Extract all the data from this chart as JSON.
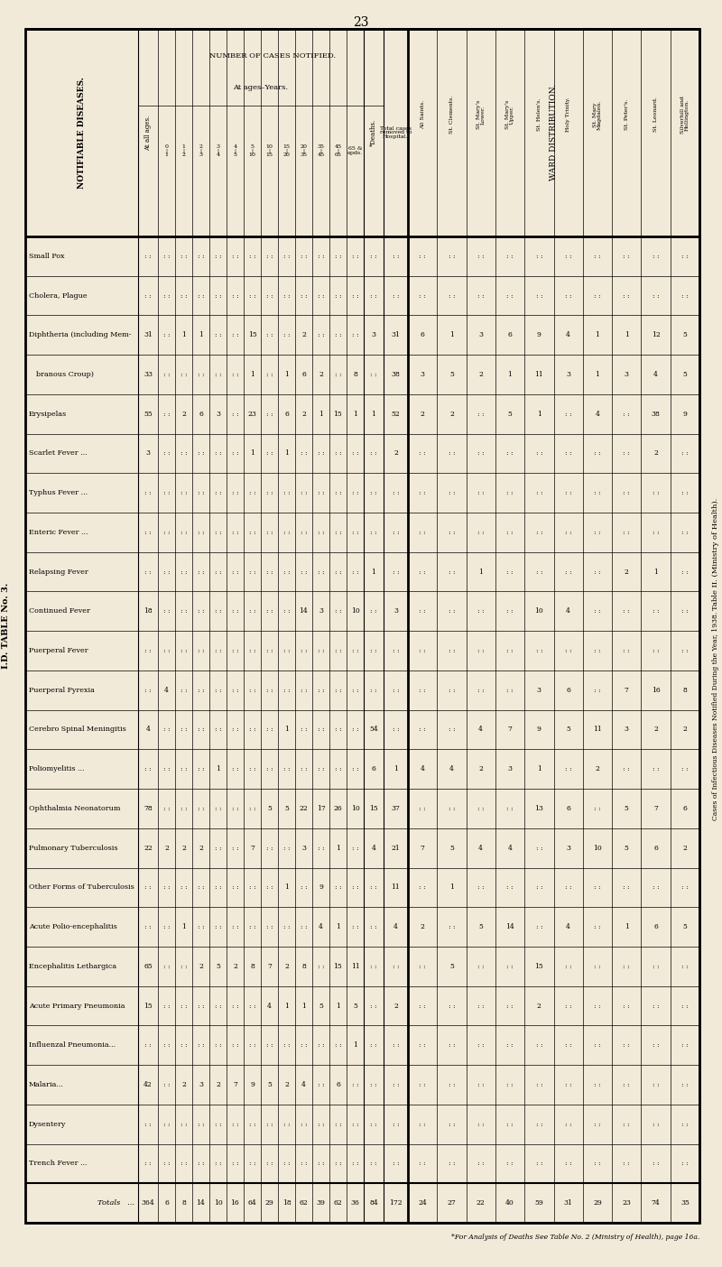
{
  "page_number": "23",
  "title_left": "I.D. TABLE No. 3.",
  "title_right_1": "Table II. (Ministry of Health).",
  "title_right_2": "Cases of Infectious Diseases Notified During the Year, 1938.",
  "footnote": "*For Analysis of Deaths See Table No. 2 (Ministry of Health), page 16a.",
  "bg_color": "#f2ead8",
  "ward_label": "WARD DISTRIBUTION.",
  "num_cases_label": "NUMBER OF CASES NOTIFIED.",
  "at_ages_label": "At ages–Years.",
  "diseases": [
    "Small Pox",
    "Cholera, Plague",
    "Diphtheria (including Mem-",
    "   branous Croup)",
    "Erysipelas",
    "Scarlet Fever ...",
    "Typhus Fever ...",
    "Enteric Fever ...",
    "Relapsing Fever",
    "Continued Fever",
    "Puerperal Fever",
    "Puerperal Pyrexia",
    "Cerebro Spinal Meningitis",
    "Poliomyelitis ...",
    "Ophthalmia Neonatorum",
    "Pulmonary Tuberculosis",
    "Other Forms of Tuberculosis",
    "Acute Polio-encephalitis",
    "Encephalitis Lethargica",
    "Acute Primary Pneumonia",
    "Influenzal Pneumonia...",
    "Malaria...",
    "Dysentery",
    "Trench Fever ...",
    "Totals"
  ],
  "col_all_ages": [
    ": :",
    ": :",
    "31",
    "33",
    "55",
    "3",
    ": :",
    ": :",
    ": :",
    "18",
    ": :",
    ": :",
    "4",
    ": :",
    "78",
    "22",
    ": :",
    ": :",
    "65",
    "15",
    ": :",
    "42",
    ": :",
    ": :",
    "364"
  ],
  "col_0_1": [
    ": :",
    ": :",
    ": :",
    ": :",
    ": :",
    ": :",
    ": :",
    ": :",
    ": :",
    ": :",
    ": :",
    "4",
    ": :",
    ": :",
    ": :",
    "2",
    ": :",
    ": :",
    ": :",
    ": :",
    ": :",
    ": :",
    ": :",
    ": :",
    "6"
  ],
  "col_1_2": [
    ": :",
    ": :",
    "1",
    ": :",
    "2",
    ": :",
    ": :",
    ": :",
    ": :",
    ": :",
    ": :",
    ": :",
    ": :",
    ": :",
    ": :",
    "2",
    ": :",
    "1",
    ": :",
    ": :",
    ": :",
    "2",
    ": :",
    ": :",
    "8"
  ],
  "col_2_3": [
    ": :",
    ": :",
    "1",
    ": :",
    "6",
    ": :",
    ": :",
    ": :",
    ": :",
    ": :",
    ": :",
    ": :",
    ": :",
    ": :",
    ": :",
    "2",
    ": :",
    ": :",
    "2",
    ": :",
    ": :",
    "3",
    ": :",
    ": :",
    "14"
  ],
  "col_3_4": [
    ": :",
    ": :",
    ": :",
    ": :",
    "3",
    ": :",
    ": :",
    ": :",
    ": :",
    ": :",
    ": :",
    ": :",
    ": :",
    "1",
    ": :",
    ": :",
    ": :",
    ": :",
    "5",
    ": :",
    ": :",
    "2",
    ": :",
    ": :",
    "10"
  ],
  "col_4_5": [
    ": :",
    ": :",
    ": :",
    ": :",
    ": :",
    ": :",
    ": :",
    ": :",
    ": :",
    ": :",
    ": :",
    ": :",
    ": :",
    ": :",
    ": :",
    ": :",
    ": :",
    ": :",
    "2",
    ": :",
    ": :",
    "7",
    ": :",
    ": :",
    "16"
  ],
  "col_5_10": [
    ": :",
    ": :",
    "15",
    "1",
    "23",
    "1",
    ": :",
    ": :",
    ": :",
    ": :",
    ": :",
    ": :",
    ": :",
    ": :",
    ": :",
    "7",
    ": :",
    ": :",
    "8",
    ": :",
    ": :",
    "9",
    ": :",
    ": :",
    "64"
  ],
  "col_10_15": [
    ": :",
    ": :",
    ": :",
    ": :",
    ": :",
    ": :",
    ": :",
    ": :",
    ": :",
    ": :",
    ": :",
    ": :",
    ": :",
    ": :",
    "5",
    ": :",
    ": :",
    ": :",
    "7",
    "4",
    ": :",
    "5",
    ": :",
    ": :",
    "29"
  ],
  "col_15_20": [
    ": :",
    ": :",
    ": :",
    "1",
    "6",
    "1",
    ": :",
    ": :",
    ": :",
    ": :",
    ": :",
    ": :",
    "1",
    ": :",
    "5",
    ": :",
    "1",
    ": :",
    "2",
    "1",
    ": :",
    "2",
    ": :",
    ": :",
    "18"
  ],
  "col_20_35": [
    ": :",
    ": :",
    "2",
    "6",
    "2",
    ": :",
    ": :",
    ": :",
    ": :",
    "14",
    ": :",
    ": :",
    ": :",
    ": :",
    "22",
    "3",
    ": :",
    ": :",
    "8",
    "1",
    ": :",
    "4",
    ": :",
    ": :",
    "62"
  ],
  "col_35_45": [
    ": :",
    ": :",
    ": :",
    "2",
    "1",
    ": :",
    ": :",
    ": :",
    ": :",
    "3",
    ": :",
    ": :",
    ": :",
    ": :",
    "17",
    ": :",
    "9",
    "4",
    ": :",
    "5",
    ": :",
    ": :",
    ": :",
    ": :",
    "39"
  ],
  "col_45_65": [
    ": :",
    ": :",
    ": :",
    ": :",
    "15",
    ": :",
    ": :",
    ": :",
    ": :",
    ": :",
    ": :",
    ": :",
    ": :",
    ": :",
    "26",
    "1",
    ": :",
    "1",
    "15",
    "1",
    ": :",
    "6",
    ": :",
    ": :",
    "62"
  ],
  "col_65up": [
    ": :",
    ": :",
    ": :",
    "8",
    "1",
    ": :",
    ": :",
    ": :",
    ": :",
    "10",
    ": :",
    ": :",
    ": :",
    ": :",
    "10",
    ": :",
    ": :",
    ": :",
    "11",
    "5",
    "1",
    ": :",
    ": :",
    ": :",
    "36"
  ],
  "col_deaths": [
    ": :",
    ": :",
    "3",
    ": :",
    "1",
    ": :",
    ": :",
    ": :",
    "1",
    ": :",
    ": :",
    ": :",
    "54",
    "6",
    "15",
    "4",
    ": :",
    ": :",
    ": :",
    ": :",
    ": :",
    ": :",
    ": :",
    ": :",
    "84"
  ],
  "col_total_rem": [
    ": :",
    ": :",
    "31",
    "38",
    "52",
    "2",
    ": :",
    ": :",
    ": :",
    "3",
    ": :",
    ": :",
    ": :",
    "1",
    "37",
    "21",
    "11",
    "4",
    ": :",
    "2",
    ": :",
    ": :",
    ": :",
    ": :",
    "172"
  ],
  "col_all_saints": [
    ": :",
    ": :",
    "6",
    "3",
    "2",
    ": :",
    ": :",
    ": :",
    ": :",
    ": :",
    ": :",
    ": :",
    ": :",
    "4",
    ": :",
    "7",
    ": :",
    "2",
    ": :",
    ": :",
    ": :",
    ": :",
    ": :",
    ": :",
    "24"
  ],
  "col_st_clements": [
    ": :",
    ": :",
    "1",
    "5",
    "2",
    ": :",
    ": :",
    ": :",
    ": :",
    ": :",
    ": :",
    ": :",
    ": :",
    "4",
    ": :",
    "5",
    "1",
    ": :",
    "5",
    ": :",
    ": :",
    ": :",
    ": :",
    ": :",
    "27"
  ],
  "col_st_marys_lower": [
    ": :",
    ": :",
    "3",
    "2",
    ": :",
    ": :",
    ": :",
    ": :",
    "1",
    ": :",
    ": :",
    ": :",
    "4",
    "2",
    ": :",
    "4",
    ": :",
    "5",
    ": :",
    ": :",
    ": :",
    ": :",
    ": :",
    ": :",
    "22"
  ],
  "col_st_marys_upper": [
    ": :",
    ": :",
    "6",
    "1",
    "5",
    ": :",
    ": :",
    ": :",
    ": :",
    ": :",
    ": :",
    ": :",
    "7",
    "3",
    ": :",
    "4",
    ": :",
    "14",
    ": :",
    ": :",
    ": :",
    ": :",
    ": :",
    ": :",
    "40"
  ],
  "col_st_helens": [
    ": :",
    ": :",
    "9",
    "11",
    "1",
    ": :",
    ": :",
    ": :",
    ": :",
    "10",
    ": :",
    "3",
    "9",
    "1",
    "13",
    ": :",
    ": :",
    ": :",
    "15",
    "2",
    ": :",
    ": :",
    ": :",
    ": :",
    "59"
  ],
  "col_holy_trinity": [
    ": :",
    ": :",
    "4",
    "3",
    ": :",
    ": :",
    ": :",
    ": :",
    ": :",
    "4",
    ": :",
    "6",
    "5",
    ": :",
    "6",
    "3",
    ": :",
    "4",
    ": :",
    ": :",
    ": :",
    ": :",
    ": :",
    ": :",
    "31"
  ],
  "col_st_mary_magdalen": [
    ": :",
    ": :",
    "1",
    "1",
    "4",
    ": :",
    ": :",
    ": :",
    ": :",
    ": :",
    ": :",
    ": :",
    "11",
    "2",
    ": :",
    "10",
    ": :",
    ": :",
    ": :",
    ": :",
    ": :",
    ": :",
    ": :",
    ": :",
    "29"
  ],
  "col_st_peters": [
    ": :",
    ": :",
    "1",
    "3",
    ": :",
    ": :",
    ": :",
    ": :",
    "2",
    ": :",
    ": :",
    "7",
    "3",
    ": :",
    "5",
    "5",
    ": :",
    "1",
    ": :",
    ": :",
    ": :",
    ": :",
    ": :",
    ": :",
    "23"
  ],
  "col_st_leonard": [
    ": :",
    ": :",
    "12",
    "4",
    "38",
    "2",
    ": :",
    ": :",
    "1",
    ": :",
    ": :",
    "16",
    "2",
    ": :",
    "7",
    "6",
    ": :",
    "6",
    ": :",
    ": :",
    ": :",
    ": :",
    ": :",
    ": :",
    "74"
  ],
  "col_silverhill": [
    ": :",
    ": :",
    "5",
    "5",
    "9",
    ": :",
    ": :",
    ": :",
    ": :",
    ": :",
    ": :",
    "8",
    "2",
    ": :",
    "6",
    "2",
    ": :",
    "5",
    ": :",
    ": :",
    ": :",
    ": :",
    ": :",
    ": :",
    "35"
  ]
}
